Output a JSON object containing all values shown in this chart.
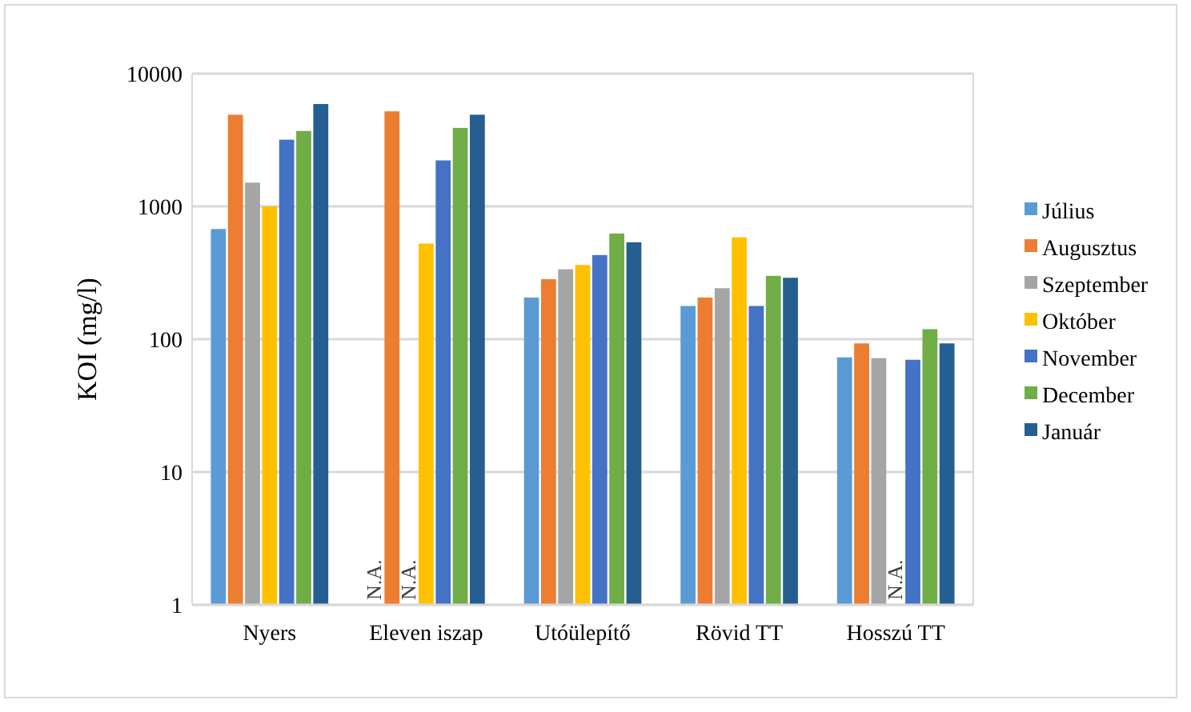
{
  "chart_data": {
    "type": "bar",
    "ylabel": "KOI (mg/l)",
    "log": true,
    "grid": "y",
    "legend": "right",
    "categories": [
      "Nyers",
      "Eleven iszap",
      "Utóülepítő",
      "Rövid TT",
      "Hosszú TT"
    ],
    "ylim": [
      1,
      10000
    ],
    "yticks": [
      1,
      10,
      100,
      1000,
      10000
    ],
    "series": [
      {
        "name": "Július",
        "color": "#5b9bd5",
        "values": [
          676,
          null,
          206,
          178,
          73
        ]
      },
      {
        "name": "Augusztus",
        "color": "#ed7d31",
        "values": [
          4900,
          5200,
          283,
          206,
          93
        ]
      },
      {
        "name": "Szeptember",
        "color": "#a5a5a5",
        "values": [
          1510,
          null,
          336,
          242,
          72
        ]
      },
      {
        "name": "Október",
        "color": "#ffc000",
        "values": [
          1000,
          525,
          362,
          585,
          null
        ]
      },
      {
        "name": "November",
        "color": "#4472c4",
        "values": [
          3180,
          2220,
          430,
          178,
          70
        ]
      },
      {
        "name": "December",
        "color": "#70ad47",
        "values": [
          3700,
          3900,
          625,
          300,
          119
        ]
      },
      {
        "name": "Január",
        "color": "#255e91",
        "values": [
          5900,
          4900,
          537,
          290,
          93
        ]
      }
    ],
    "annotations": [
      "N.A.",
      "N.A.",
      "N.A."
    ]
  }
}
